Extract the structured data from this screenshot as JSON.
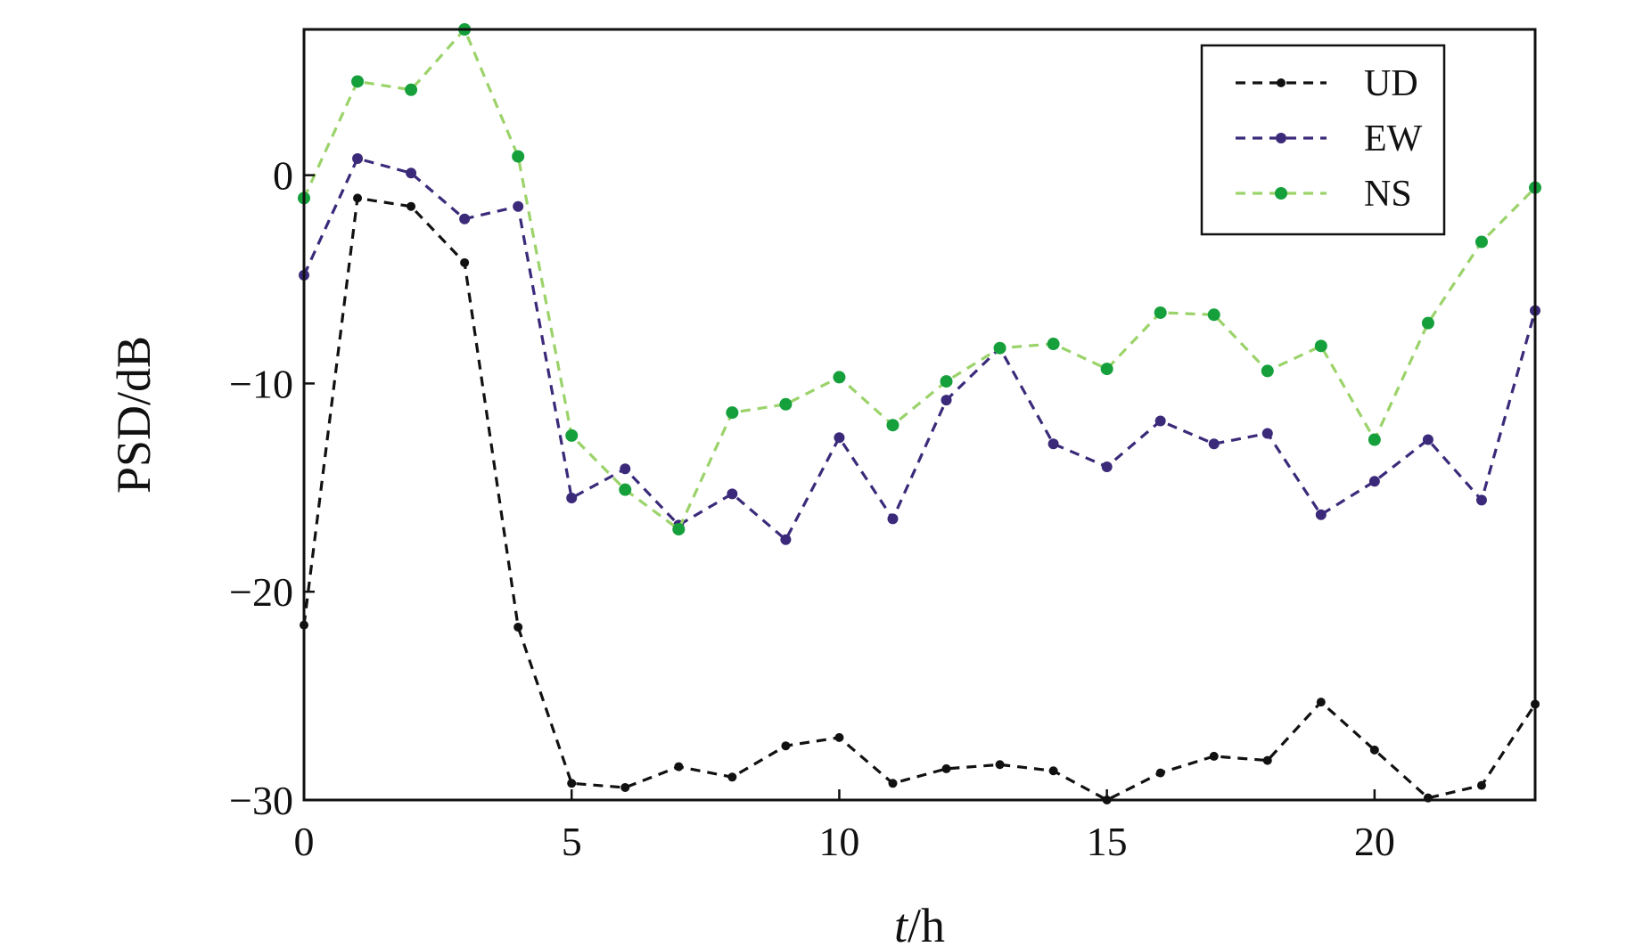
{
  "chart_data": {
    "type": "line",
    "title": "",
    "xlabel": "t/h",
    "xlabel_italic": "t",
    "xlabel_rest": "/h",
    "ylabel": "PSD/dB",
    "xlim": [
      0,
      23
    ],
    "ylim": [
      -30,
      7
    ],
    "xticks": [
      0,
      5,
      10,
      15,
      20
    ],
    "xtick_labels": [
      "0",
      "5",
      "10",
      "15",
      "20"
    ],
    "yticks": [
      -30,
      -20,
      -10,
      0
    ],
    "ytick_labels": [
      "−30",
      "−20",
      "−10",
      "0"
    ],
    "legend_position": "top-right",
    "x": [
      0,
      1,
      2,
      3,
      4,
      5,
      6,
      7,
      8,
      9,
      10,
      11,
      12,
      13,
      14,
      15,
      16,
      17,
      18,
      19,
      20,
      21,
      22,
      23
    ],
    "series": [
      {
        "name": "UD",
        "color": "#111111",
        "values": [
          -21.6,
          -1.1,
          -1.5,
          -4.2,
          -21.7,
          -29.2,
          -29.4,
          -28.4,
          -28.9,
          -27.4,
          -27.0,
          -29.2,
          -28.5,
          -28.3,
          -28.6,
          -30.0,
          -28.7,
          -27.9,
          -28.1,
          -25.3,
          -27.6,
          -29.9,
          -29.3,
          -25.4
        ],
        "dot_r": 5,
        "stroke_w": 3.2,
        "dash": "11 8"
      },
      {
        "name": "EW",
        "color": "#3b2a7a",
        "values": [
          -4.8,
          0.8,
          0.1,
          -2.1,
          -1.5,
          -15.5,
          -14.1,
          -16.8,
          -15.3,
          -17.5,
          -12.6,
          -16.5,
          -10.8,
          -8.3,
          -12.9,
          -14.0,
          -11.8,
          -12.9,
          -12.4,
          -16.3,
          -14.7,
          -12.7,
          -15.6,
          -6.5
        ],
        "dot_r": 6,
        "stroke_w": 3.2,
        "dash": "11 8"
      },
      {
        "name": "NS",
        "color": "#15a03c",
        "line_color": "#9bd36a",
        "values": [
          -1.1,
          4.5,
          4.1,
          7.0,
          0.9,
          -12.5,
          -15.1,
          -17.0,
          -11.4,
          -11.0,
          -9.7,
          -12.0,
          -9.9,
          -8.3,
          -8.1,
          -9.3,
          -6.6,
          -6.7,
          -9.4,
          -8.2,
          -12.7,
          -7.1,
          -3.2,
          -0.6
        ],
        "dot_r": 7,
        "stroke_w": 3.2,
        "dash": "11 8"
      }
    ]
  }
}
